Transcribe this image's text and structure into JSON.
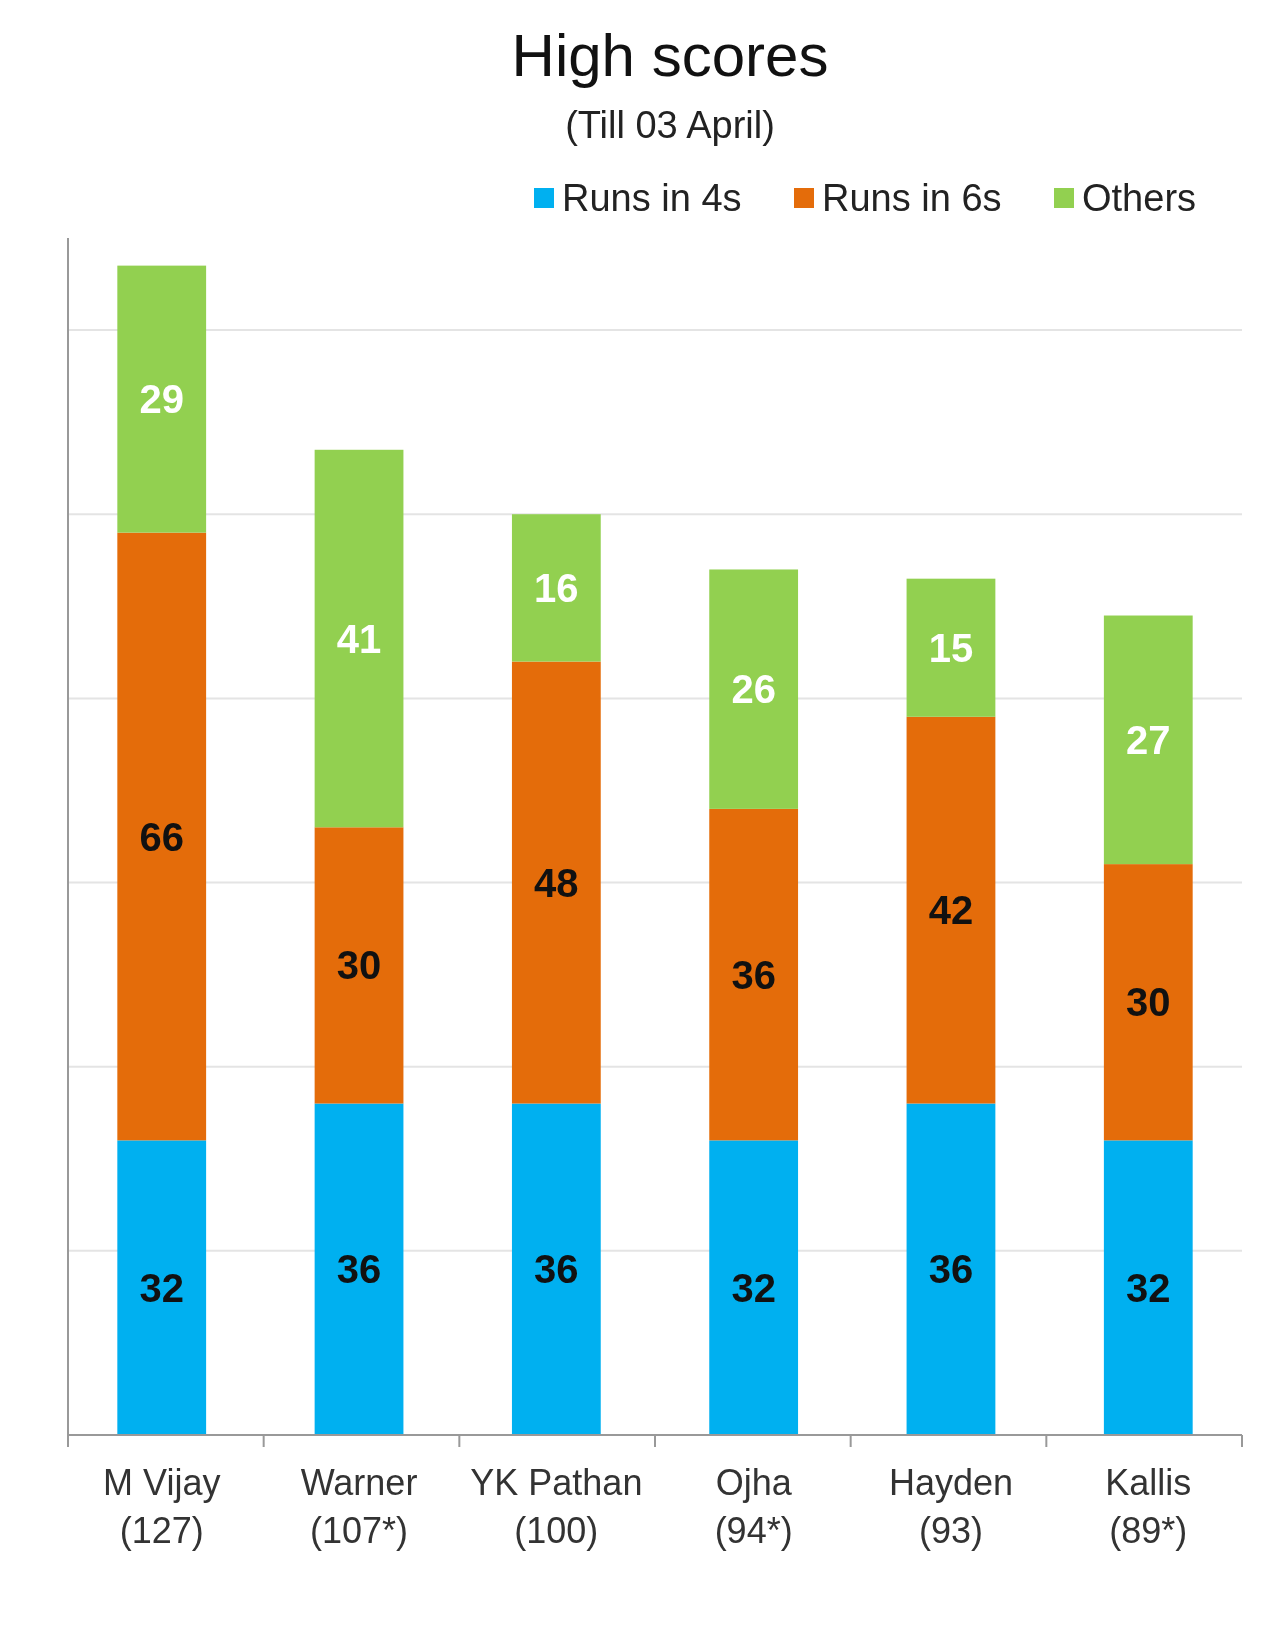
{
  "chart_data": {
    "type": "bar",
    "title": "High scores",
    "subtitle": "(Till 03 April)",
    "categories": [
      "M Vijay (127)",
      "Warner (107*)",
      "YK Pathan (100)",
      "Ojha (94*)",
      "Hayden (93)",
      "Kallis (89*)"
    ],
    "stacked": true,
    "data_labels": true,
    "legend": "top right",
    "grid": "y",
    "ylim": [
      0,
      130
    ],
    "yticks": [
      {
        "value": 0,
        "label": null
      },
      {
        "value": 20,
        "label": null
      },
      {
        "value": 40,
        "label": null
      },
      {
        "value": 60,
        "label": null
      },
      {
        "value": 80,
        "label": null
      },
      {
        "value": 100,
        "label": null
      },
      {
        "value": 120,
        "label": null
      }
    ],
    "series": [
      {
        "name": "Runs in 4s",
        "color": "#00b0f0",
        "values": [
          32,
          36,
          36,
          32,
          36,
          32
        ]
      },
      {
        "name": "Runs in 6s",
        "color": "#e46c0a",
        "values": [
          66,
          30,
          48,
          36,
          42,
          30
        ]
      },
      {
        "name": "Others",
        "color": "#92d050",
        "values": [
          29,
          41,
          16,
          26,
          15,
          27
        ]
      }
    ]
  }
}
